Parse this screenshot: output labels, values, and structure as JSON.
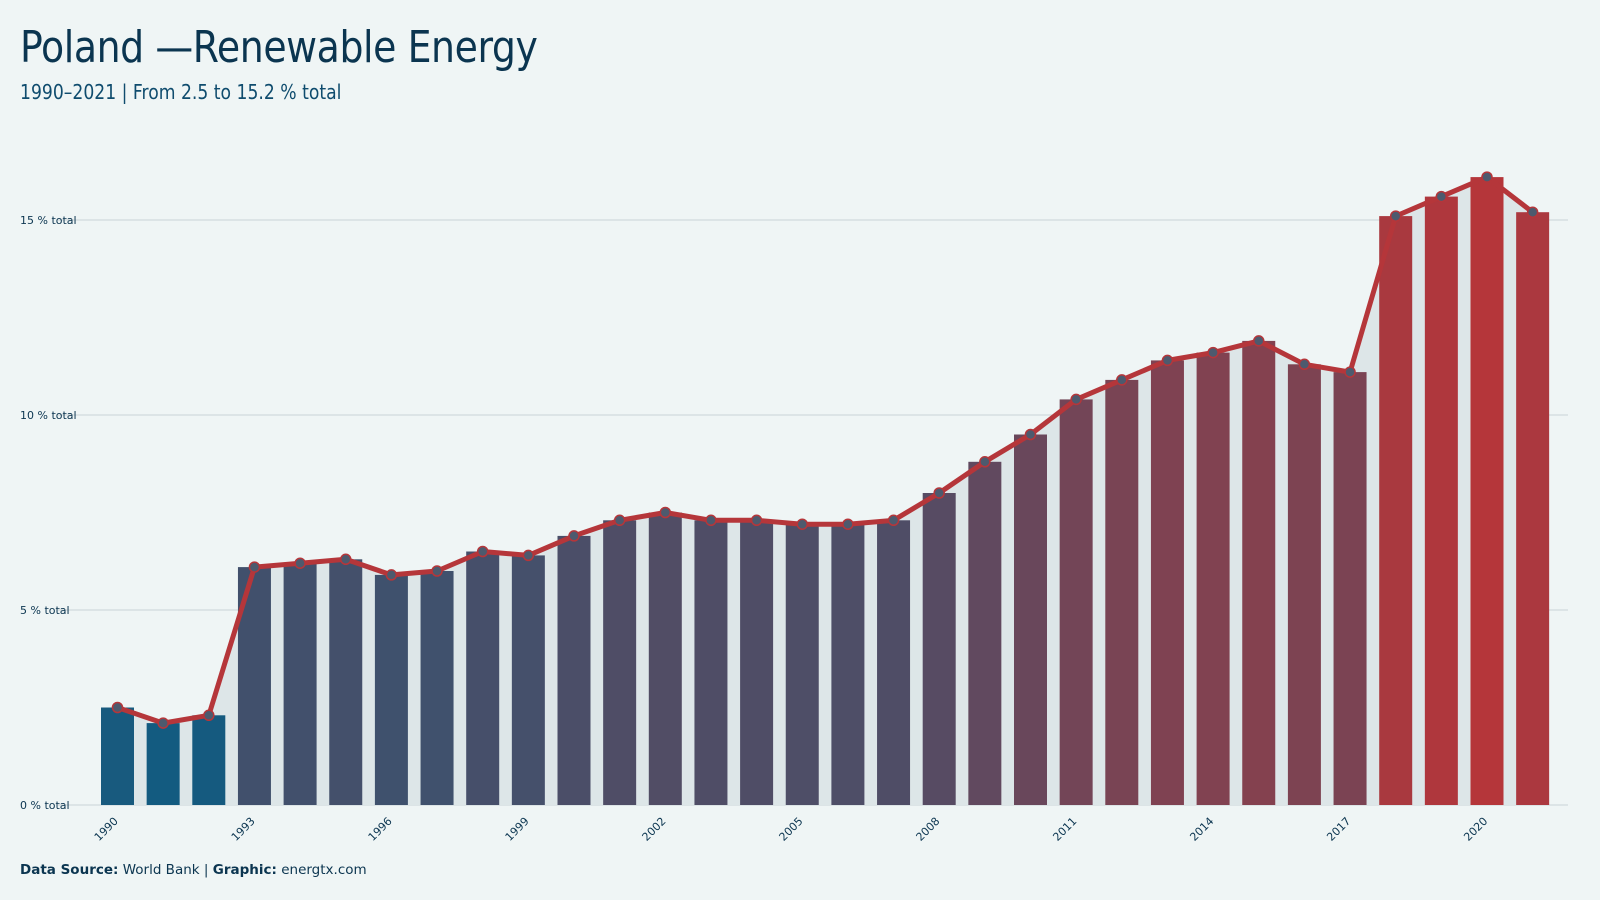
{
  "header": {
    "title": "Poland —Renewable Energy",
    "subtitle": "1990–2021 | From 2.5 to 15.2 % total"
  },
  "caption": {
    "source_label": "Data Source:",
    "source_value": "World Bank",
    "separator": "|",
    "graphic_label": "Graphic:",
    "graphic_value": "energtx.com"
  },
  "colors": {
    "background": "#eff5f5",
    "area_fill": "#dde6e8",
    "line": "#b5363a",
    "point_fill": "#4d5a6e",
    "bar_start": "#135b80",
    "bar_end": "#b5363a",
    "grid": "#c9d3d6",
    "text": "#0b3550"
  },
  "chart_data": {
    "type": "bar",
    "x": [
      1990,
      1991,
      1992,
      1993,
      1994,
      1995,
      1996,
      1997,
      1998,
      1999,
      2000,
      2001,
      2002,
      2003,
      2004,
      2005,
      2006,
      2007,
      2008,
      2009,
      2010,
      2011,
      2012,
      2013,
      2014,
      2015,
      2016,
      2017,
      2018,
      2019,
      2020,
      2021
    ],
    "values": [
      2.5,
      2.1,
      2.3,
      6.1,
      6.2,
      6.3,
      5.9,
      6.0,
      6.5,
      6.4,
      6.9,
      7.3,
      7.5,
      7.3,
      7.3,
      7.2,
      7.2,
      7.3,
      8.0,
      8.8,
      9.5,
      10.4,
      10.9,
      11.4,
      11.6,
      11.9,
      11.3,
      11.1,
      15.1,
      15.6,
      16.1,
      15.2
    ],
    "overlay": "line with points and shaded area",
    "x_tick_labels": [
      "1990",
      "1993",
      "1996",
      "1999",
      "2002",
      "2005",
      "2008",
      "2011",
      "2014",
      "2017",
      "2020"
    ],
    "y_ticks": [
      0,
      5,
      10,
      15
    ],
    "y_tick_suffix": " % total",
    "ylim": [
      0,
      17.5
    ],
    "grid": "horizontal",
    "xlabel": "",
    "ylabel": ""
  }
}
